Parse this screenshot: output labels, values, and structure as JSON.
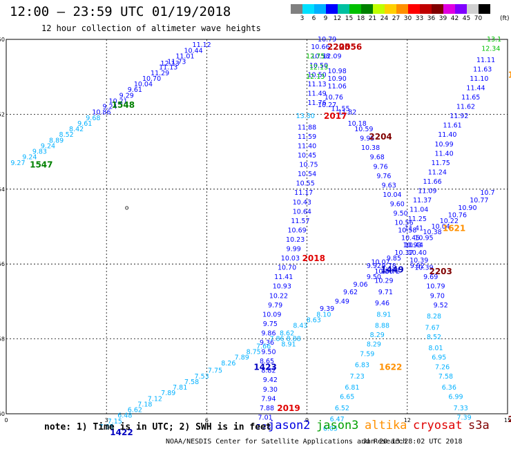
{
  "header": {
    "title": "12:00 – 23:59 UTC 01/19/2018",
    "subtitle": "12 hour collection of altimeter wave heights"
  },
  "legend": {
    "unit": "(ft)",
    "labels": [
      "3",
      "6",
      "9",
      "12",
      "15",
      "18",
      "21",
      "24",
      "27",
      "30",
      "33",
      "36",
      "39",
      "42",
      "45",
      "70"
    ],
    "colors": [
      "#808080",
      "#00e0ff",
      "#00b0ff",
      "#0000ff",
      "#00c0a0",
      "#00c000",
      "#008000",
      "#c0ff00",
      "#ffd000",
      "#ff9000",
      "#ff0000",
      "#c00000",
      "#800000",
      "#e000e0",
      "#8000ff",
      "#d0d0d0",
      "#000000"
    ]
  },
  "map": {
    "lat_ticks": [
      "-50",
      "-52",
      "-54",
      "-56",
      "-58",
      "-60"
    ],
    "lon_ticks": [
      "0",
      "3",
      "6",
      "9",
      "12",
      "15"
    ],
    "island_label": "o"
  },
  "chart_data": {
    "type": "scatter",
    "xlim": [
      0,
      15
    ],
    "ylim": [
      -60,
      -50
    ],
    "groups": [
      {
        "color": "#00b0ff",
        "points": [
          [
            0.35,
            -53.3,
            "9.27"
          ],
          [
            0.7,
            -53.15,
            "9.24"
          ],
          [
            1.0,
            -53.0,
            "9.83"
          ],
          [
            1.25,
            -52.85,
            "9.24"
          ],
          [
            1.5,
            -52.7,
            "8.89"
          ],
          [
            1.8,
            -52.55,
            "8.52"
          ],
          [
            2.1,
            -52.4,
            "8.42"
          ],
          [
            2.35,
            -52.25,
            "9.61"
          ],
          [
            2.6,
            -52.1,
            "9.68"
          ]
        ]
      },
      {
        "color": "#0000ff",
        "points": [
          [
            2.85,
            -51.95,
            "10.86"
          ],
          [
            3.1,
            -51.8,
            "9.24"
          ],
          [
            3.35,
            -51.65,
            "10.21"
          ],
          [
            3.6,
            -51.5,
            "9.29"
          ],
          [
            3.85,
            -51.35,
            "9.61"
          ],
          [
            4.1,
            -51.2,
            "10.04"
          ],
          [
            4.35,
            -51.05,
            "10.70"
          ],
          [
            4.6,
            -50.9,
            "11.29"
          ],
          [
            4.85,
            -50.75,
            "11.13"
          ],
          [
            5.1,
            -50.6,
            "11.73"
          ],
          [
            5.35,
            -50.45,
            "11.01"
          ],
          [
            5.6,
            -50.3,
            "10.44"
          ],
          [
            5.85,
            -50.15,
            "11.12"
          ],
          [
            4.9,
            -50.65,
            "12.13"
          ]
        ]
      },
      {
        "color": "#0000ff",
        "points": [
          [
            9.3,
            -51.7,
            "11.76"
          ],
          [
            9.3,
            -51.45,
            "11.49"
          ],
          [
            9.3,
            -51.2,
            "11.13"
          ],
          [
            9.3,
            -50.95,
            "10.50"
          ],
          [
            9.35,
            -50.7,
            "10.50"
          ],
          [
            9.4,
            -50.45,
            "10.58"
          ],
          [
            9.4,
            -50.2,
            "10.66"
          ],
          [
            9.6,
            -50.0,
            "10.79"
          ],
          [
            9.6,
            -51.75,
            "10.27"
          ],
          [
            9.8,
            -51.55,
            "10.76"
          ],
          [
            9.9,
            -51.25,
            "11.06"
          ],
          [
            9.75,
            -50.45,
            "12.09"
          ],
          [
            9.9,
            -50.85,
            "10.98"
          ],
          [
            9.9,
            -51.05,
            "10.90"
          ],
          [
            10.0,
            -51.85,
            "11.55"
          ],
          [
            10.2,
            -51.95,
            "11.82"
          ],
          [
            10.5,
            -52.25,
            "10.18"
          ],
          [
            10.7,
            -52.4,
            "10.59"
          ],
          [
            10.8,
            -52.65,
            "9.95"
          ],
          [
            10.9,
            -52.9,
            "10.38"
          ],
          [
            11.1,
            -53.15,
            "9.68"
          ],
          [
            11.2,
            -53.4,
            "9.76"
          ],
          [
            11.3,
            -53.65,
            "9.76"
          ],
          [
            11.45,
            -53.9,
            "9.63"
          ],
          [
            11.55,
            -54.15,
            "10.04"
          ],
          [
            11.7,
            -54.4,
            "9.60"
          ],
          [
            11.8,
            -54.65,
            "9.50"
          ],
          [
            11.9,
            -54.9,
            "10.56"
          ],
          [
            12.0,
            -55.1,
            "10.58"
          ],
          [
            12.1,
            -55.3,
            "10.45"
          ],
          [
            12.2,
            -55.5,
            "10.44"
          ],
          [
            12.3,
            -55.7,
            "10.40"
          ],
          [
            12.35,
            -55.9,
            "10.39"
          ],
          [
            12.5,
            -56.1,
            "10.39"
          ],
          [
            12.7,
            -56.35,
            "9.69"
          ],
          [
            12.85,
            -56.6,
            "10.79"
          ],
          [
            12.9,
            -56.85,
            "9.70"
          ],
          [
            13.0,
            -57.1,
            "9.52"
          ]
        ]
      },
      {
        "color": "#0000ff",
        "points": [
          [
            9.0,
            -52.35,
            "11.88"
          ],
          [
            9.0,
            -52.6,
            "11.59"
          ],
          [
            9.0,
            -52.85,
            "11.40"
          ],
          [
            9.0,
            -53.1,
            "10.45"
          ],
          [
            9.05,
            -53.35,
            "10.75"
          ],
          [
            9.0,
            -53.6,
            "10.54"
          ],
          [
            8.95,
            -53.85,
            "10.55"
          ],
          [
            8.9,
            -54.1,
            "11.17"
          ],
          [
            8.85,
            -54.35,
            "10.43"
          ],
          [
            8.85,
            -54.6,
            "10.64"
          ],
          [
            8.8,
            -54.85,
            "11.57"
          ],
          [
            8.7,
            -55.1,
            "10.69"
          ],
          [
            8.65,
            -55.35,
            "10.23"
          ],
          [
            8.6,
            -55.6,
            "9.99"
          ],
          [
            8.5,
            -55.85,
            "10.03"
          ],
          [
            8.4,
            -56.1,
            "10.70"
          ],
          [
            8.3,
            -56.35,
            "11.41"
          ],
          [
            8.25,
            -56.6,
            "10.93"
          ],
          [
            8.15,
            -56.85,
            "10.22"
          ],
          [
            8.05,
            -57.1,
            "9.79"
          ],
          [
            7.95,
            -57.35,
            "10.09"
          ],
          [
            7.9,
            -57.6,
            "9.75"
          ],
          [
            7.85,
            -57.85,
            "9.86"
          ],
          [
            7.8,
            -58.1,
            "9.36"
          ],
          [
            7.85,
            -58.35,
            "9.50"
          ],
          [
            7.8,
            -58.6,
            "8.65"
          ],
          [
            7.85,
            -58.85,
            "8.82"
          ],
          [
            7.9,
            -59.1,
            "9.42"
          ],
          [
            7.9,
            -59.35,
            "9.30"
          ],
          [
            7.85,
            -59.6,
            "7.94"
          ],
          [
            7.8,
            -59.85,
            "7.88"
          ],
          [
            7.75,
            -60.1,
            "7.01"
          ],
          [
            7.7,
            -60.35,
            "7.28"
          ]
        ]
      },
      {
        "color": "#00b0ff",
        "points": [
          [
            8.95,
            -52.05,
            "13.30"
          ],
          [
            8.45,
            -58.15,
            "8.91"
          ],
          [
            8.6,
            -58.0,
            "8.88"
          ]
        ]
      },
      {
        "color": "#00c000",
        "points": [
          [
            9.25,
            -50.45,
            "12.75"
          ],
          [
            9.35,
            -50.75,
            "12.13"
          ],
          [
            9.25,
            -51.0,
            "12.13"
          ]
        ]
      },
      {
        "color": "#0000ff",
        "points": [
          [
            11.3,
            -56.2,
            "10.50"
          ],
          [
            11.0,
            -56.35,
            "9.50"
          ],
          [
            10.6,
            -56.55,
            "9.06"
          ],
          [
            10.3,
            -56.75,
            "9.62"
          ],
          [
            10.05,
            -57.0,
            "9.49"
          ],
          [
            9.6,
            -57.2,
            "9.39"
          ],
          [
            11.3,
            -56.45,
            "10.29"
          ],
          [
            11.35,
            -56.75,
            "9.71"
          ],
          [
            11.25,
            -57.05,
            "9.46"
          ],
          [
            11.5,
            -56.2,
            "10.72"
          ],
          [
            11.45,
            -56.05,
            "9.78"
          ],
          [
            12.3,
            -56.05,
            "9.92"
          ],
          [
            11.2,
            -55.95,
            "10.07"
          ],
          [
            11.0,
            -56.05,
            "9.92"
          ],
          [
            11.6,
            -55.85,
            "9.85"
          ],
          [
            11.9,
            -55.7,
            "10.37"
          ],
          [
            12.15,
            -55.5,
            "10.93"
          ],
          [
            12.5,
            -55.3,
            "10.95"
          ],
          [
            12.75,
            -55.15,
            "10.38"
          ],
          [
            13.0,
            -55.0,
            "10.04"
          ],
          [
            13.25,
            -54.85,
            "10.22"
          ],
          [
            13.5,
            -54.7,
            "10.76"
          ],
          [
            13.8,
            -54.5,
            "10.90"
          ],
          [
            14.15,
            -54.3,
            "10.77"
          ],
          [
            14.4,
            -54.1,
            "10.7"
          ],
          [
            12.2,
            -55.05,
            "11.41"
          ],
          [
            12.3,
            -54.8,
            "11.25"
          ],
          [
            12.35,
            -54.55,
            "11.04"
          ],
          [
            12.45,
            -54.3,
            "11.37"
          ],
          [
            12.6,
            -54.05,
            "11.09"
          ],
          [
            12.75,
            -53.8,
            "11.66"
          ],
          [
            12.9,
            -53.55,
            "11.24"
          ],
          [
            13.0,
            -53.3,
            "11.75"
          ],
          [
            13.1,
            -53.05,
            "11.40"
          ],
          [
            13.1,
            -52.8,
            "10.99"
          ],
          [
            13.2,
            -52.55,
            "11.40"
          ],
          [
            13.35,
            -52.3,
            "11.61"
          ],
          [
            13.55,
            -52.05,
            "11.92"
          ],
          [
            13.75,
            -51.8,
            "11.62"
          ],
          [
            13.9,
            -51.55,
            "11.65"
          ],
          [
            14.05,
            -51.3,
            "11.44"
          ],
          [
            14.15,
            -51.05,
            "11.10"
          ],
          [
            14.25,
            -50.8,
            "11.63"
          ],
          [
            14.35,
            -50.55,
            "11.11"
          ]
        ]
      },
      {
        "color": "#00c000",
        "points": [
          [
            14.5,
            -50.25,
            "12.34"
          ],
          [
            14.6,
            -50.0,
            "13.1"
          ]
        ]
      },
      {
        "color": "#00b0ff",
        "points": [
          [
            12.8,
            -57.4,
            "8.28"
          ],
          [
            12.75,
            -57.7,
            "7.67"
          ],
          [
            12.8,
            -57.95,
            "8.52"
          ],
          [
            12.85,
            -58.25,
            "8.01"
          ],
          [
            12.95,
            -58.5,
            "6.95"
          ],
          [
            13.05,
            -58.75,
            "7.26"
          ],
          [
            13.15,
            -59.0,
            "7.58"
          ],
          [
            13.25,
            -59.3,
            "6.36"
          ],
          [
            13.45,
            -59.55,
            "6.99"
          ],
          [
            13.6,
            -59.85,
            "7.33"
          ],
          [
            13.7,
            -60.1,
            "7.39"
          ],
          [
            11.3,
            -57.35,
            "8.91"
          ],
          [
            11.25,
            -57.65,
            "8.88"
          ],
          [
            11.1,
            -57.9,
            "8.29"
          ],
          [
            11.0,
            -58.15,
            "8.29"
          ],
          [
            10.8,
            -58.4,
            "7.59"
          ],
          [
            10.65,
            -58.7,
            "6.83"
          ],
          [
            10.5,
            -59.0,
            "7.23"
          ],
          [
            10.35,
            -59.3,
            "6.81"
          ],
          [
            10.2,
            -59.55,
            "6.65"
          ],
          [
            10.05,
            -59.85,
            "6.52"
          ],
          [
            9.9,
            -60.15,
            "6.47"
          ],
          [
            9.7,
            -60.4,
            "6.05"
          ]
        ]
      },
      {
        "color": "#00b0ff",
        "points": [
          [
            3.0,
            -60.35,
            "7.35"
          ],
          [
            3.25,
            -60.2,
            "7.15"
          ],
          [
            3.55,
            -60.05,
            "6.48"
          ],
          [
            3.85,
            -59.9,
            "6.62"
          ],
          [
            4.15,
            -59.75,
            "7.18"
          ],
          [
            4.45,
            -59.6,
            "7.12"
          ],
          [
            4.85,
            -59.45,
            "7.89"
          ],
          [
            5.2,
            -59.3,
            "7.81"
          ],
          [
            5.55,
            -59.15,
            "7.58"
          ],
          [
            5.85,
            -59.0,
            "7.53"
          ],
          [
            6.25,
            -58.85,
            "7.75"
          ],
          [
            6.65,
            -58.65,
            "8.26"
          ],
          [
            7.05,
            -58.5,
            "7.89"
          ],
          [
            7.4,
            -58.35,
            "8.75"
          ],
          [
            7.7,
            -58.2,
            "7.66"
          ],
          [
            8.1,
            -58.0,
            "7.86"
          ],
          [
            8.4,
            -57.85,
            "8.62"
          ],
          [
            8.8,
            -57.65,
            "8.43"
          ],
          [
            9.2,
            -57.5,
            "8.63"
          ],
          [
            9.5,
            -57.35,
            "8.10"
          ]
        ]
      }
    ],
    "sat_labels": [
      {
        "x": 3.5,
        "y": -51.75,
        "t": "1548",
        "color": "#008000"
      },
      {
        "x": 1.05,
        "y": -53.35,
        "t": "1547",
        "color": "#008000"
      },
      {
        "x": 7.75,
        "y": -58.75,
        "t": "1423",
        "color": "#0000c0"
      },
      {
        "x": 3.45,
        "y": -60.5,
        "t": "1422",
        "color": "#0000c0"
      },
      {
        "x": 9.95,
        "y": -50.2,
        "t": "2205",
        "color": "#c00000"
      },
      {
        "x": 10.3,
        "y": -50.2,
        "t": "2056",
        "color": "#c00000"
      },
      {
        "x": 9.85,
        "y": -52.05,
        "t": "2017",
        "color": "#e00000"
      },
      {
        "x": 9.2,
        "y": -55.85,
        "t": "2018",
        "color": "#e00000"
      },
      {
        "x": 8.45,
        "y": -59.85,
        "t": "2019",
        "color": "#e00000"
      },
      {
        "x": 11.2,
        "y": -52.6,
        "t": "2204",
        "color": "#800000"
      },
      {
        "x": 13.0,
        "y": -56.2,
        "t": "2203",
        "color": "#800000"
      },
      {
        "x": 11.55,
        "y": -56.15,
        "t": "1449",
        "color": "#0000c0"
      },
      {
        "x": 11.5,
        "y": -58.75,
        "t": "1622",
        "color": "#ff9000"
      },
      {
        "x": 13.4,
        "y": -55.05,
        "t": "1621",
        "color": "#ff9000"
      },
      {
        "x": 15.1,
        "y": -60.15,
        "t": "2",
        "color": "#800000"
      },
      {
        "x": 15.1,
        "y": -50.95,
        "t": "1",
        "color": "#ff9000"
      }
    ]
  },
  "footer": {
    "note": "note: 1) Time is in UTC; 2) SWH is in feet",
    "satellites": [
      {
        "name": "jason2",
        "color": "#0000e0"
      },
      {
        "name": "jason3",
        "color": "#00a000"
      },
      {
        "name": "altika",
        "color": "#ff9000"
      },
      {
        "name": "cryosat",
        "color": "#e00000"
      },
      {
        "name": "s3a",
        "color": "#800000"
      }
    ],
    "credit": "NOAA/NESDIS Center for Satellite Applications and Research",
    "timestamp": "Jan 20 13:28:02 UTC 2018"
  }
}
